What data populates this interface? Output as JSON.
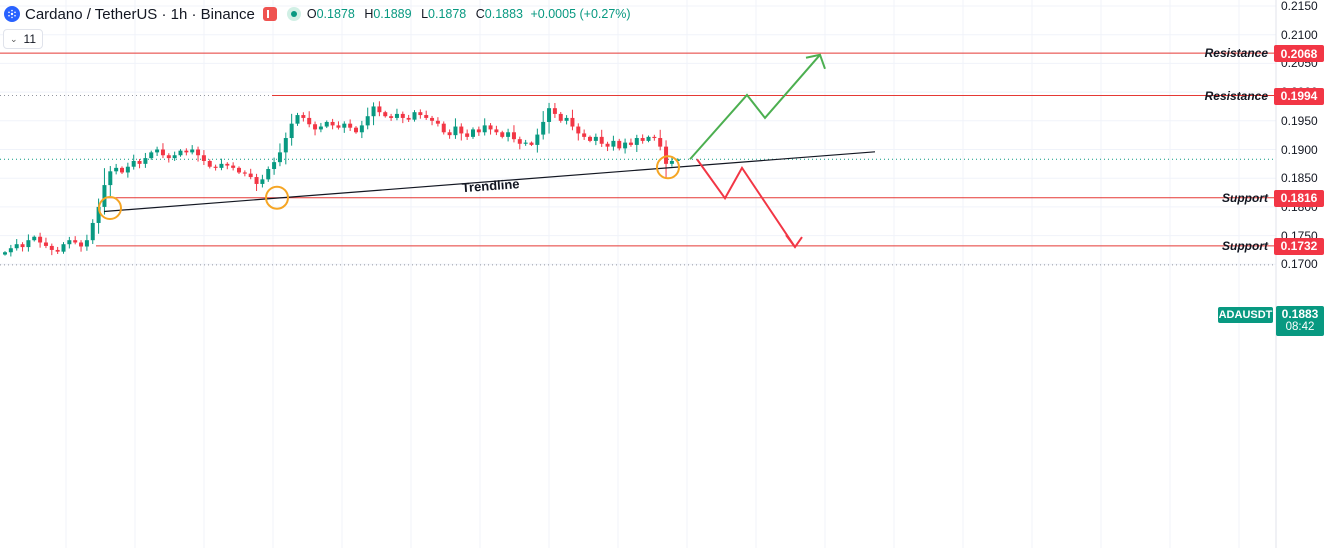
{
  "header": {
    "symbol_title": "Cardano / TetherUS · 1h · Binance",
    "open_key": "O",
    "open": "0.1878",
    "high_key": "H",
    "high": "0.1889",
    "low_key": "L",
    "low": "0.1878",
    "close_key": "C",
    "close": "0.1883",
    "change": "+0.0005 (+0.27%)",
    "interval_value": "11"
  },
  "colors": {
    "up": "#089981",
    "down": "#f23645",
    "level_line": "#e53935",
    "bull_arrow": "#4caf50",
    "bear_arrow": "#f23645",
    "touch_circle": "#f5a524",
    "trendline": "#131722"
  },
  "price_badge": {
    "symbol": "ADAUSDT",
    "price": "0.1883",
    "countdown": "08:42"
  },
  "chart_data": {
    "type": "candlestick",
    "y_axis_ticks": [
      "0.2150",
      "0.2100",
      "0.2050",
      "0.2000",
      "0.1950",
      "0.1900",
      "0.1850",
      "0.1800",
      "0.1750",
      "0.1700"
    ],
    "ylim": [
      0.1695,
      0.2158
    ],
    "levels": [
      {
        "label": "Resistance",
        "value": 0.2068,
        "value_label": "0.2068"
      },
      {
        "label": "Resistance",
        "value": 0.1994,
        "value_label": "0.1994"
      },
      {
        "label": "Support",
        "value": 0.1816,
        "value_label": "0.1816"
      },
      {
        "label": "Support",
        "value": 0.1732,
        "value_label": "0.1732"
      }
    ],
    "trendline": {
      "label": "Trendline"
    },
    "current_price": 0.1883,
    "projection_bull": [
      0.1883,
      0.1995,
      0.1955,
      0.2065
    ],
    "projection_bear": [
      0.1883,
      0.1815,
      0.1868,
      0.173
    ],
    "closes": [
      0.1721,
      0.1728,
      0.1735,
      0.173,
      0.1742,
      0.1748,
      0.1738,
      0.1732,
      0.1725,
      0.1722,
      0.1735,
      0.1742,
      0.1738,
      0.1731,
      0.1742,
      0.1772,
      0.18,
      0.1838,
      0.1862,
      0.1868,
      0.186,
      0.187,
      0.188,
      0.1875,
      0.1885,
      0.1895,
      0.19,
      0.189,
      0.1885,
      0.189,
      0.1898,
      0.1895,
      0.19,
      0.189,
      0.188,
      0.187,
      0.1868,
      0.1875,
      0.1872,
      0.1868,
      0.186,
      0.1858,
      0.1852,
      0.184,
      0.1848,
      0.1866,
      0.1878,
      0.1895,
      0.192,
      0.1945,
      0.196,
      0.1955,
      0.1944,
      0.1935,
      0.194,
      0.1948,
      0.1942,
      0.1938,
      0.1945,
      0.1938,
      0.193,
      0.1942,
      0.1958,
      0.1975,
      0.1965,
      0.1958,
      0.1955,
      0.1962,
      0.1955,
      0.1952,
      0.1965,
      0.196,
      0.1955,
      0.195,
      0.1945,
      0.193,
      0.1925,
      0.194,
      0.1928,
      0.1922,
      0.1935,
      0.193,
      0.1942,
      0.1935,
      0.193,
      0.1922,
      0.193,
      0.1918,
      0.191,
      0.1912,
      0.1908,
      0.1926,
      0.1948,
      0.1972,
      0.1962,
      0.195,
      0.1955,
      0.194,
      0.1928,
      0.1922,
      0.1915,
      0.1922,
      0.191,
      0.1905,
      0.1915,
      0.1902,
      0.1912,
      0.1908,
      0.192,
      0.1915,
      0.1922,
      0.192,
      0.1905,
      0.1875,
      0.188,
      0.1883
    ]
  }
}
